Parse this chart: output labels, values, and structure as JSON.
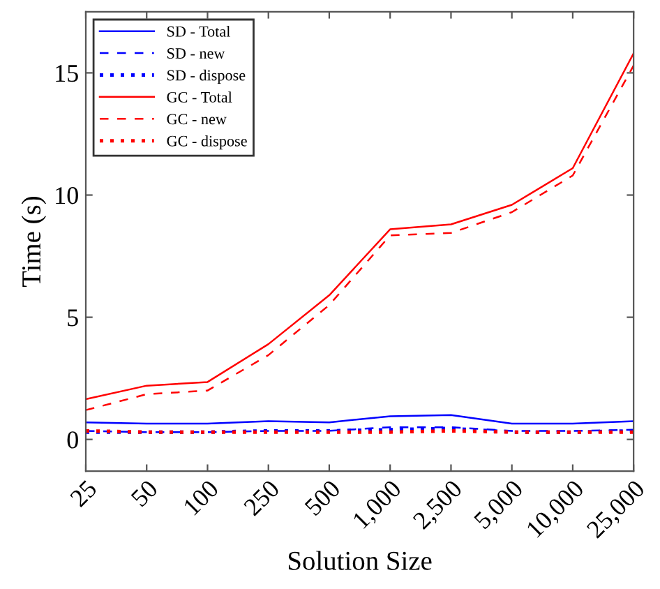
{
  "chart_data": {
    "type": "line",
    "xlabel": "Solution Size",
    "ylabel": "Time (s)",
    "categories": [
      "25",
      "50",
      "100",
      "250",
      "500",
      "1,000",
      "2,500",
      "5,000",
      "10,000",
      "25,000"
    ],
    "ylim": [
      -1.3,
      17.5
    ],
    "yticks": [
      0,
      5,
      10,
      15
    ],
    "grid": false,
    "legend": "top left",
    "series": [
      {
        "name": "SD - Total",
        "color": "#0000ff",
        "line_style": "solid",
        "values": [
          0.7,
          0.65,
          0.65,
          0.75,
          0.7,
          0.95,
          1.0,
          0.65,
          0.65,
          0.75
        ]
      },
      {
        "name": "SD - new",
        "color": "#0000ff",
        "line_style": "dashed",
        "values": [
          0.35,
          0.3,
          0.3,
          0.35,
          0.35,
          0.5,
          0.5,
          0.35,
          0.35,
          0.4
        ]
      },
      {
        "name": "SD - dispose",
        "color": "#0000ff",
        "line_style": "dotted",
        "values": [
          0.3,
          0.3,
          0.3,
          0.35,
          0.35,
          0.4,
          0.45,
          0.3,
          0.3,
          0.35
        ]
      },
      {
        "name": "GC - Total",
        "color": "#ff0000",
        "line_style": "solid",
        "values": [
          1.65,
          2.2,
          2.35,
          3.9,
          5.9,
          8.6,
          8.8,
          9.6,
          11.1,
          15.8
        ]
      },
      {
        "name": "GC - new",
        "color": "#ff0000",
        "line_style": "dashed",
        "values": [
          1.2,
          1.85,
          2.0,
          3.45,
          5.5,
          8.35,
          8.45,
          9.3,
          10.8,
          15.3
        ]
      },
      {
        "name": "GC - dispose",
        "color": "#ff0000",
        "line_style": "dotted",
        "values": [
          0.35,
          0.3,
          0.3,
          0.3,
          0.3,
          0.3,
          0.35,
          0.3,
          0.3,
          0.3
        ]
      }
    ]
  }
}
